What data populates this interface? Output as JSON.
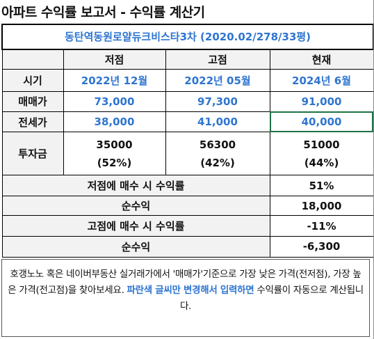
{
  "title": "아파트 수익률 보고서 - 수익률 계산기",
  "subtitle": "동탄역동원로얄듀크비스타3차 (2020.02/278/33평)",
  "headers": {
    "low": "저점",
    "high": "고점",
    "now": "현재"
  },
  "rows": {
    "period": {
      "label": "시기",
      "low": "2022년 12월",
      "high": "2022년 05월",
      "now": "2024년 6월"
    },
    "sale": {
      "label": "매매가",
      "low": "73,000",
      "high": "97,300",
      "now": "91,000"
    },
    "jeonse": {
      "label": "전세가",
      "low": "38,000",
      "high": "41,000",
      "now": "40,000"
    },
    "invest": {
      "label": "투자금",
      "low": "35000",
      "low_pct": "(52%)",
      "high": "56300",
      "high_pct": "(42%)",
      "now": "51000",
      "now_pct": "(44%)"
    }
  },
  "summary": [
    {
      "label": "저점에 매수 시 수익률",
      "value": "51%"
    },
    {
      "label": "순수익",
      "value": "18,000"
    },
    {
      "label": "고점에 매수 시 수익률",
      "value": "-11%"
    },
    {
      "label": "순수익",
      "value": "-6,300"
    }
  ],
  "footer": {
    "part1": "호갱노노 혹은 네이버부동산 실거래가에서 '매매가'기준으로 가장 낮은 가격(전저점), 가장 높은 가격(전고점)을 찾아보세요. ",
    "highlight": "파란색 글씨만 변경해서 입력하면",
    "part2": " 수익률이 자동으로 계산됩니다."
  },
  "colors": {
    "accent_blue": "#2e75d0",
    "selection_green": "#1e7145",
    "shade": "#f2f2f2"
  }
}
